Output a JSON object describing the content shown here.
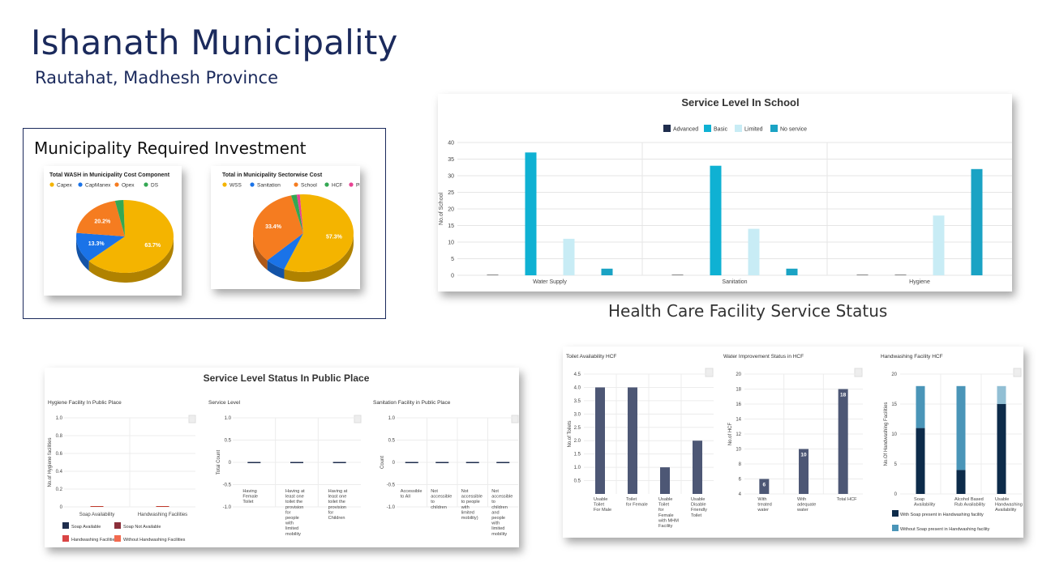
{
  "header": {
    "title": "Ishanath Municipality",
    "subtitle": "Rautahat, Madhesh Province"
  },
  "investment": {
    "title": "Municipality Required Investment"
  },
  "section_caption": "Health Care Facility Service Status",
  "colors": {
    "advanced": "#1f2d4d",
    "basic": "#0fb1d3",
    "limited": "#c8ecf5",
    "noservice": "#1aa3c4",
    "hcf_bar": "#4d5775",
    "soap_present": "#0d2b4a",
    "soap_absent": "#4a95b8"
  },
  "chart_data": [
    {
      "id": "pie-cost-component",
      "type": "pie",
      "title": "Total WASH in Municipality Cost Component",
      "categories": [
        "Capex",
        "CapManex",
        "Opex",
        "DS"
      ],
      "colors": [
        "#f4b400",
        "#1a73e8",
        "#f57c20",
        "#34a853"
      ],
      "values": [
        63.7,
        13.3,
        20.2,
        2.8
      ],
      "labels": [
        "63.7%",
        "13.3%",
        "20.2%",
        ""
      ]
    },
    {
      "id": "pie-sectorwise",
      "type": "pie",
      "title": "Total in Municipality Sectorwise Cost",
      "categories": [
        "WSS",
        "Sanitation",
        "School",
        "HCF",
        "PP"
      ],
      "colors": [
        "#f4b400",
        "#1a73e8",
        "#f57c20",
        "#34a853",
        "#e84393"
      ],
      "values": [
        57.3,
        6.5,
        33.4,
        1.8,
        1.0
      ],
      "labels": [
        "57.3%",
        "",
        "33.4%",
        "",
        ""
      ]
    },
    {
      "id": "service-level-school",
      "type": "bar",
      "title": "Service Level In School",
      "ylabel": "No.of School",
      "categories": [
        "Water Supply",
        "Sanitation",
        "Hygiene"
      ],
      "ylim": [
        0,
        40
      ],
      "yticks": [
        "0",
        "5",
        "10",
        "15",
        "20",
        "25",
        "30",
        "35",
        "40"
      ],
      "series": [
        {
          "name": "Advanced",
          "values": [
            0,
            0,
            0
          ]
        },
        {
          "name": "Basic",
          "values": [
            37,
            33,
            0
          ]
        },
        {
          "name": "Limited",
          "values": [
            11,
            14,
            18
          ]
        },
        {
          "name": "No service",
          "values": [
            2,
            2,
            32
          ]
        }
      ]
    },
    {
      "id": "public-place",
      "type": "bar",
      "title": "Service Level Status In Public Place",
      "panels": [
        {
          "title": "Hygiene Facility In Public Place",
          "ylabel": "No.of Hygiene facilities",
          "ylim": [
            0,
            1.0
          ],
          "yticks": [
            "0",
            "0.2",
            "0.4",
            "0.6",
            "0.8",
            "1.0"
          ],
          "categories": [
            "Soap Availability",
            "Handwashing Facilities"
          ]
        },
        {
          "title": "Service Level",
          "ylabel": "Total Count",
          "ylim": [
            -1.0,
            1.0
          ],
          "yticks": [
            "-1.0",
            "-0.5",
            "0",
            "0.5",
            "1.0"
          ],
          "categories": [
            [
              "Having",
              "Female",
              "Toilet"
            ],
            [
              "Having at",
              "least one",
              "toilet the",
              "provision",
              "for",
              "people",
              "with",
              "limited",
              "mobility"
            ],
            [
              "Having at",
              "least one",
              "toilet the",
              "provision",
              "for",
              "Children"
            ]
          ]
        },
        {
          "title": "Sanitation Facility in Public Place",
          "ylabel": "Count",
          "ylim": [
            -1.0,
            1.0
          ],
          "yticks": [
            "-1.0",
            "-0.5",
            "0",
            "0.5",
            "1.0"
          ],
          "categories": [
            [
              "Accessible",
              "to All"
            ],
            [
              "Not",
              "accessible",
              "to",
              "children"
            ],
            [
              "Not",
              "accessible",
              "to people",
              "with",
              "limited",
              "mobility)"
            ],
            [
              "Not",
              "accessible",
              "to",
              "children",
              "and",
              "people",
              "with",
              "limited",
              "mobility"
            ]
          ]
        }
      ],
      "legend": [
        {
          "name": "Soap Available",
          "color": "#1f2d4d"
        },
        {
          "name": "Soap Not Available",
          "color": "#8b2f3a"
        },
        {
          "name": "Handwashing Facilities",
          "color": "#d94545"
        },
        {
          "name": "Without Handwashing Facilities",
          "color": "#f26a4f"
        }
      ]
    },
    {
      "id": "hcf",
      "type": "bar",
      "panels": [
        {
          "title": "Toilet Availability HCF",
          "ylabel": "No.of Toilets",
          "ylim": [
            0,
            4.5
          ],
          "yticks": [
            "0.5",
            "1.0",
            "1.5",
            "2.0",
            "2.5",
            "3.0",
            "3.5",
            "4.0",
            "4.5"
          ],
          "categories": [
            [
              "Usable",
              "Toilet",
              "For Male"
            ],
            [
              "Toilet",
              "for Female"
            ],
            [
              "Usable",
              "Toilet",
              "for",
              "Female",
              "with MHM",
              "Facility"
            ],
            [
              "Usable",
              "Disable",
              "Friendly",
              "Toilet"
            ]
          ],
          "values": [
            4,
            4,
            1,
            2
          ]
        },
        {
          "title": "Water Improvement Status in HCF",
          "ylabel": "No.of HCF",
          "ylim": [
            4,
            20
          ],
          "yticks": [
            "4",
            "6",
            "8",
            "10",
            "12",
            "14",
            "16",
            "18",
            "20"
          ],
          "categories": [
            [
              "With",
              "treated",
              "water"
            ],
            [
              "With",
              "adequate",
              "water"
            ],
            [
              "Total HCF"
            ]
          ],
          "values": [
            6,
            10,
            18
          ],
          "labels": [
            "6",
            "10",
            "18"
          ]
        },
        {
          "title": "Handwashing Facility HCF",
          "ylabel": "No.Of Handwashing Facilities",
          "ylim": [
            0,
            20
          ],
          "yticks": [
            "0",
            "5",
            "10",
            "15",
            "20"
          ],
          "categories": [
            [
              "Soap",
              "Availability"
            ],
            [
              "Alcohol Based",
              "Rub Availability"
            ],
            [
              "Usable",
              "Handwashing",
              "Availability"
            ]
          ],
          "series": [
            {
              "name": "With Soap present in Handwashing facility",
              "values": [
                11,
                4,
                15
              ]
            },
            {
              "name": "Without Soap present in Handwashing facility",
              "values": [
                7,
                14,
                3
              ]
            }
          ]
        }
      ]
    }
  ]
}
